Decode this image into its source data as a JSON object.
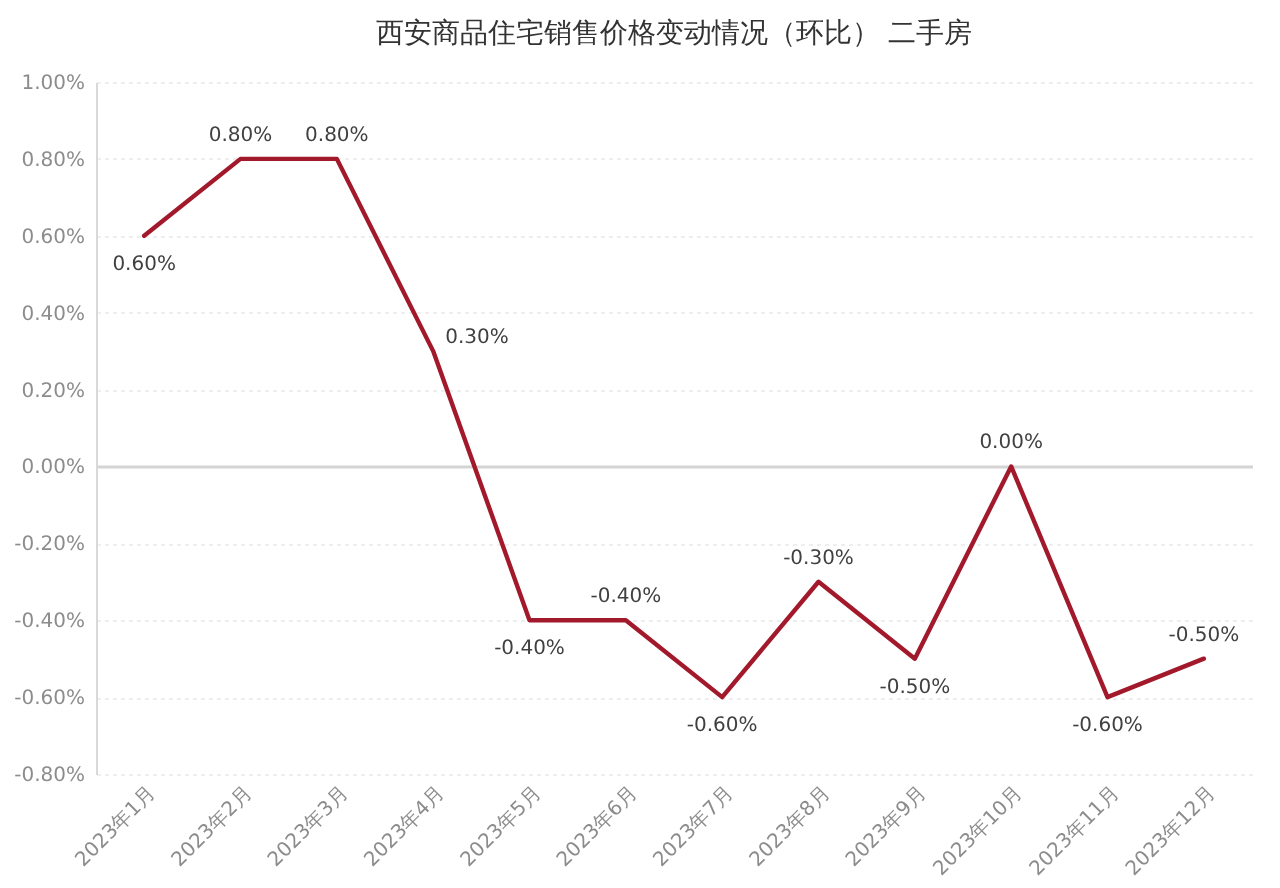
{
  "chart_data": {
    "type": "line",
    "title": "西安商品住宅销售价格变动情况（环比） 二手房",
    "categories": [
      "2023年1月",
      "2023年2月",
      "2023年3月",
      "2023年4月",
      "2023年5月",
      "2023年6月",
      "2023年7月",
      "2023年8月",
      "2023年9月",
      "2023年10月",
      "2023年11月",
      "2023年12月"
    ],
    "values": [
      0.6,
      0.8,
      0.8,
      0.3,
      -0.4,
      -0.4,
      -0.6,
      -0.3,
      -0.5,
      0.0,
      -0.6,
      -0.5
    ],
    "value_labels": [
      "0.60%",
      "0.80%",
      "0.80%",
      "0.30%",
      "-0.40%",
      "-0.40%",
      "-0.60%",
      "-0.30%",
      "-0.50%",
      "0.00%",
      "-0.60%",
      "-0.50%"
    ],
    "color": "#a3192c",
    "ylim": [
      -0.8,
      1.0
    ],
    "yticks": [
      {
        "value": -0.8,
        "label": "-0.80%"
      },
      {
        "value": -0.6,
        "label": "-0.60%"
      },
      {
        "value": -0.4,
        "label": "-0.40%"
      },
      {
        "value": -0.2,
        "label": "-0.20%"
      },
      {
        "value": 0.0,
        "label": "0.00%"
      },
      {
        "value": 0.2,
        "label": "0.20%"
      },
      {
        "value": 0.4,
        "label": "0.40%"
      },
      {
        "value": 0.6,
        "label": "0.60%"
      },
      {
        "value": 0.8,
        "label": "0.80%"
      },
      {
        "value": 1.0,
        "label": "1.00%"
      }
    ],
    "grid": "y"
  }
}
